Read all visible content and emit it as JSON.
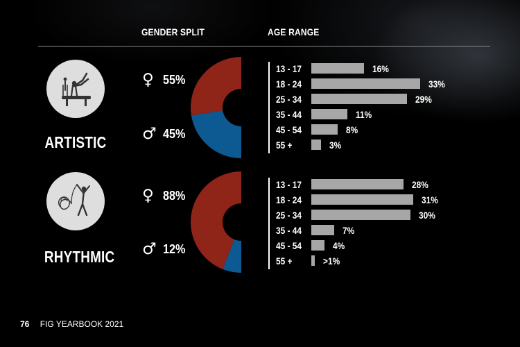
{
  "header": {
    "gender_title": "GENDER SPLIT",
    "age_title": "AGE RANGE"
  },
  "colors": {
    "female": "#8f2418",
    "male": "#0d5a92",
    "bar": "#a7a7a7",
    "icon_bg": "#dedede"
  },
  "chart_data": [
    {
      "type": "pie",
      "title": "ARTISTIC",
      "icon": "artistic-gymnastics-pictogram",
      "gender": {
        "female": {
          "symbol": "♀",
          "label": "55%",
          "value": 55
        },
        "male": {
          "symbol": "♂",
          "label": "45%",
          "value": 45
        }
      },
      "age": {
        "type": "bar",
        "categories": [
          "13 - 17",
          "18 - 24",
          "25 - 34",
          "35 - 44",
          "45 - 54",
          "55 +"
        ],
        "values": [
          16,
          33,
          29,
          11,
          8,
          3
        ],
        "labels": [
          "16%",
          "33%",
          "29%",
          "11%",
          "8%",
          "3%"
        ]
      }
    },
    {
      "type": "pie",
      "title": "RHYTHMIC",
      "icon": "rhythmic-gymnastics-pictogram",
      "gender": {
        "female": {
          "symbol": "♀",
          "label": "88%",
          "value": 88
        },
        "male": {
          "symbol": "♂",
          "label": "12%",
          "value": 12
        }
      },
      "age": {
        "type": "bar",
        "categories": [
          "13 - 17",
          "18 - 24",
          "25 - 34",
          "35 - 44",
          "45 - 54",
          "55 +"
        ],
        "values": [
          28,
          31,
          30,
          7,
          4,
          1
        ],
        "labels": [
          "28%",
          "31%",
          "30%",
          "7%",
          "4%",
          ">1%"
        ]
      }
    }
  ],
  "footer": {
    "page_number": "76",
    "publication": "FIG YEARBOOK 2021"
  }
}
